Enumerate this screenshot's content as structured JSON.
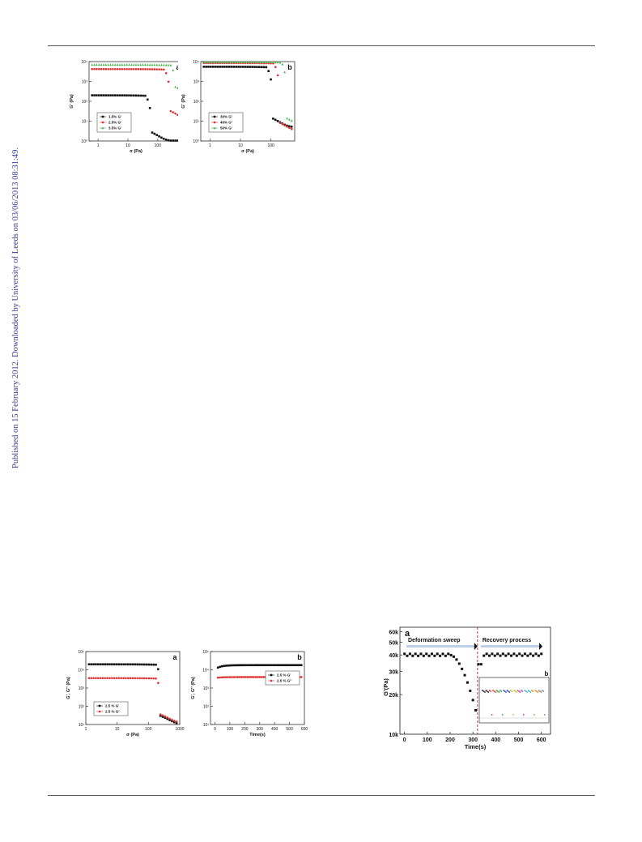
{
  "sidebar_text": "Published on 15 February 2012. Downloaded by University of Leeds on 03/06/2013 08:31:49.",
  "chart_data": [
    {
      "id": "fig1a",
      "type": "scatter",
      "panel_label": "a",
      "xlabel": "σ (Pa)",
      "ylabel": "G' (Pa)",
      "xscale": "log",
      "yscale": "log",
      "xlim": [
        0.5,
        700
      ],
      "ylim": [
        1,
        10000
      ],
      "xticks": [
        "1",
        "10",
        "100"
      ],
      "yticks": [
        "10⁰",
        "10¹",
        "10²",
        "10³",
        "10⁴"
      ],
      "legend_position": "lower-left",
      "series": [
        {
          "name": "1.5%  G'",
          "color": "#111111",
          "marker": "square",
          "plateau": 200,
          "yield": 55,
          "final": 1
        },
        {
          "name": "2.5%  G'",
          "color": "#e03030",
          "marker": "circle",
          "plateau": 4200,
          "yield": 230,
          "final": 12
        },
        {
          "name": "3.5%  G'",
          "color": "#3cb043",
          "marker": "triangle",
          "plateau": 7000,
          "yield": 380,
          "final": 180
        }
      ]
    },
    {
      "id": "fig1b",
      "type": "scatter",
      "panel_label": "b",
      "xlabel": "σ (Pa)",
      "ylabel": "G' (Pa)",
      "xscale": "log",
      "yscale": "log",
      "xlim": [
        0.5,
        600
      ],
      "ylim": [
        1,
        10000
      ],
      "xticks": [
        "1",
        "10",
        "100"
      ],
      "yticks": [
        "10⁰",
        "10¹",
        "10²",
        "10³",
        "10⁴"
      ],
      "legend_position": "lower-left",
      "series": [
        {
          "name": "30%  G'",
          "color": "#111111",
          "marker": "square",
          "plateau": 5500,
          "yield": 100,
          "final": 5
        },
        {
          "name": "40%  G'",
          "color": "#e03030",
          "marker": "circle",
          "plateau": 8500,
          "yield": 170,
          "final": 3
        },
        {
          "name": "50%  G'",
          "color": "#3cb043",
          "marker": "triangle",
          "plateau": 9500,
          "yield": 300,
          "final": 5
        }
      ]
    },
    {
      "id": "fig2a",
      "type": "scatter",
      "panel_label": "a",
      "xlabel": "σ (Pa)",
      "ylabel": "G', G'' (Pa)",
      "xscale": "log",
      "yscale": "log",
      "xlim": [
        1,
        1000
      ],
      "ylim": [
        10,
        100000
      ],
      "xticks": [
        "1",
        "10",
        "100",
        "1000"
      ],
      "yticks": [
        "10¹",
        "10²",
        "10³",
        "10⁴",
        "10⁵"
      ],
      "legend_position": "lower-left",
      "series": [
        {
          "name": "2.5 %  G'",
          "color": "#111111",
          "marker": "square",
          "plateau": 20000,
          "yield": 240,
          "final": 10
        },
        {
          "name": "2.5 %  G''",
          "color": "#e03030",
          "marker": "circle",
          "plateau": 3500,
          "yield": 240,
          "final": 12
        }
      ]
    },
    {
      "id": "fig2b",
      "type": "scatter",
      "panel_label": "b",
      "xlabel": "Time(s)",
      "ylabel": "G', G'' (Pa)",
      "xscale": "linear",
      "yscale": "log",
      "xlim": [
        -30,
        600
      ],
      "ylim": [
        10,
        100000
      ],
      "xticks": [
        "0",
        "100",
        "200",
        "300",
        "400",
        "500",
        "600"
      ],
      "yticks": [
        "10¹",
        "10²",
        "10³",
        "10⁴",
        "10⁵"
      ],
      "legend_position": "upper-right",
      "series": [
        {
          "name": "2.5 %  G'",
          "color": "#111111",
          "marker": "square",
          "start": 10000,
          "level": 18000
        },
        {
          "name": "2.5 %  G''",
          "color": "#e03030",
          "marker": "circle",
          "start": 3500,
          "level": 4000
        }
      ]
    },
    {
      "id": "fig3a",
      "type": "scatter",
      "panel_label": "a",
      "xlabel": "Time(s)",
      "ylabel": "G'(Pa)",
      "xscale": "linear",
      "yscale": "log",
      "xlim": [
        -20,
        640
      ],
      "ylim": [
        10000,
        65000
      ],
      "xticks": [
        "0",
        "100",
        "200",
        "300",
        "400",
        "500",
        "600"
      ],
      "yticks": [
        "10k",
        "20k",
        "30k",
        "40k",
        "50k",
        "60k"
      ],
      "annotations": [
        "Deformation sweep",
        "Recovery process"
      ],
      "divider_x": 320,
      "series": [
        {
          "name": "G'",
          "color": "#111111",
          "marker": "square",
          "level": 40000,
          "min": 14500,
          "min_x": 315
        }
      ],
      "inset_label": "b"
    }
  ]
}
